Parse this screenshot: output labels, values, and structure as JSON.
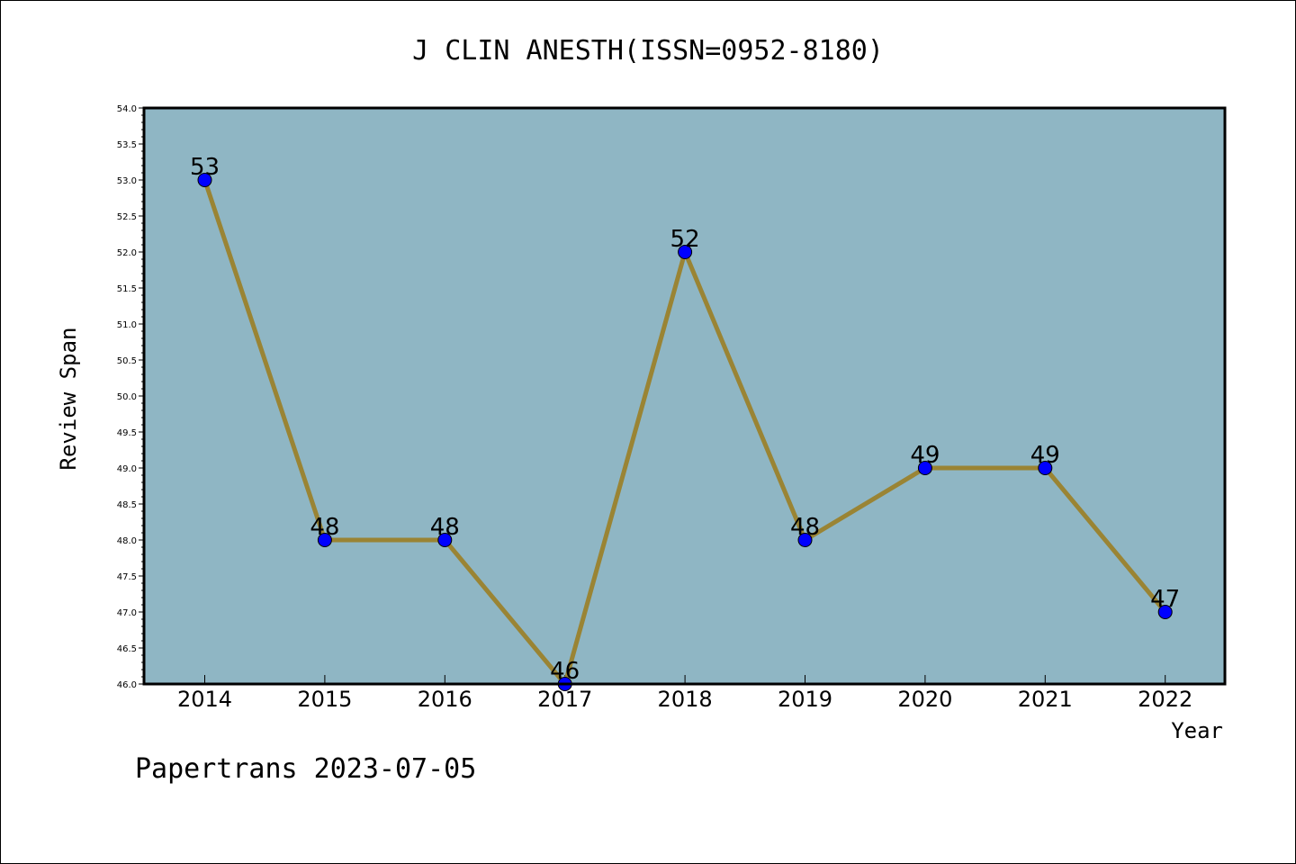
{
  "chart_data": {
    "type": "line",
    "title": "J CLIN ANESTH(ISSN=0952-8180)",
    "xlabel": "Year",
    "ylabel": "Review Span",
    "categories": [
      "2014",
      "2015",
      "2016",
      "2017",
      "2018",
      "2019",
      "2020",
      "2021",
      "2022"
    ],
    "values": [
      53,
      48,
      48,
      46,
      52,
      48,
      49,
      49,
      47
    ],
    "data_labels": [
      "53",
      "48",
      "48",
      "46",
      "52",
      "48",
      "49",
      "49",
      "47"
    ],
    "ylim": [
      46.0,
      54.0
    ],
    "yticks": [
      "46.0",
      "46.5",
      "47.0",
      "47.5",
      "48.0",
      "48.5",
      "49.0",
      "49.5",
      "50.0",
      "50.5",
      "51.0",
      "51.5",
      "52.0",
      "52.5",
      "53.0",
      "53.5",
      "54.0"
    ],
    "grid": false,
    "colors": {
      "plot_background": "#8fb6c4",
      "line": "#9a8434",
      "marker": "#0000ff"
    }
  },
  "footer": "Papertrans 2023-07-05"
}
